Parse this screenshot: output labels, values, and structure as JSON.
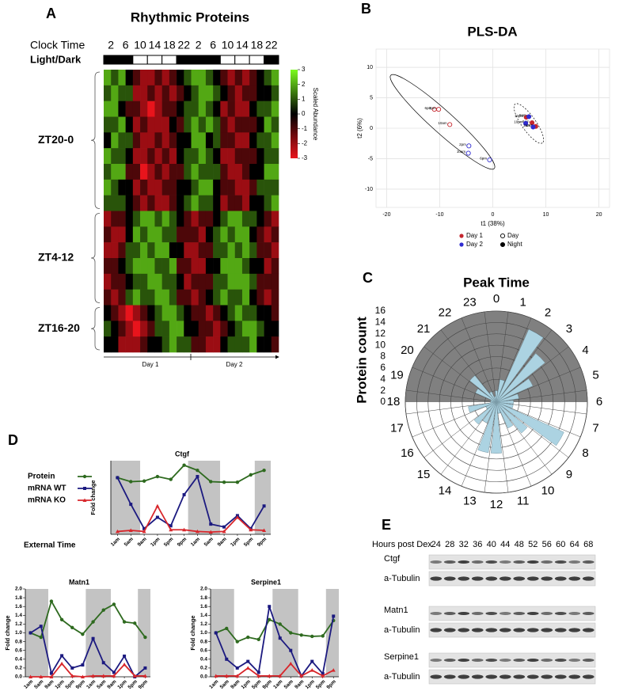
{
  "chart_data": [
    {
      "type": "heatmap",
      "panel": "A",
      "title": "Rhythmic Proteins",
      "clock_label": "Clock Time",
      "columns": [
        2,
        6,
        10,
        14,
        18,
        22,
        2,
        6,
        10,
        14,
        18,
        22
      ],
      "light_dark_label": "Light/Dark",
      "light": [
        false,
        false,
        true,
        true,
        true,
        false,
        false,
        false,
        true,
        true,
        true,
        false
      ],
      "values": [
        [
          2,
          1,
          2,
          0,
          -1,
          -2,
          -2,
          -1,
          -2,
          -1,
          0,
          1,
          2,
          2,
          1,
          0,
          -1,
          -2,
          -1,
          -2,
          -1,
          0,
          1,
          2
        ],
        [
          1,
          2,
          1,
          1,
          -2,
          -2,
          -1,
          -2,
          -1,
          -2,
          -1,
          0,
          1,
          2,
          2,
          1,
          0,
          -1,
          -2,
          -1,
          -1,
          0,
          0,
          1
        ],
        [
          2,
          2,
          0,
          -1,
          -1,
          -2,
          -3,
          -2,
          -1,
          -1,
          0,
          1,
          1,
          2,
          1,
          0,
          -2,
          -1,
          -2,
          -2,
          0,
          1,
          1,
          2
        ],
        [
          1,
          1,
          2,
          0,
          -2,
          -1,
          -2,
          -2,
          -2,
          0,
          -1,
          1,
          2,
          1,
          2,
          1,
          -1,
          -2,
          -1,
          -1,
          -1,
          0,
          2,
          1
        ],
        [
          0,
          2,
          1,
          1,
          -1,
          -2,
          -2,
          -1,
          -2,
          -1,
          0,
          0,
          2,
          2,
          0,
          1,
          -1,
          -1,
          -2,
          -2,
          0,
          1,
          1,
          2
        ],
        [
          2,
          1,
          1,
          0,
          -2,
          -2,
          -1,
          -2,
          -1,
          -2,
          0,
          1,
          1,
          2,
          1,
          0,
          -2,
          -2,
          -1,
          -1,
          -1,
          0,
          1,
          1
        ],
        [
          1,
          2,
          2,
          -1,
          -1,
          -3,
          -2,
          -1,
          -2,
          -1,
          -1,
          1,
          2,
          1,
          1,
          1,
          -1,
          -2,
          -2,
          -1,
          0,
          0,
          2,
          2
        ],
        [
          2,
          1,
          0,
          0,
          -2,
          -1,
          -2,
          -2,
          -1,
          -1,
          0,
          0,
          1,
          2,
          2,
          0,
          -1,
          -1,
          -2,
          -2,
          -1,
          1,
          1,
          1
        ],
        [
          1,
          1,
          1,
          0,
          -1,
          -2,
          -1,
          -2,
          -2,
          -1,
          0,
          1,
          2,
          1,
          1,
          0,
          -2,
          -1,
          -1,
          -2,
          0,
          0,
          1,
          2
        ],
        [
          -2,
          -1,
          -1,
          0,
          1,
          2,
          2,
          1,
          2,
          1,
          0,
          -1,
          -2,
          -1,
          -1,
          0,
          1,
          2,
          2,
          1,
          1,
          0,
          -1,
          -2
        ],
        [
          -1,
          -2,
          -2,
          0,
          2,
          1,
          2,
          2,
          1,
          1,
          -1,
          -1,
          -1,
          -2,
          0,
          1,
          2,
          1,
          2,
          2,
          0,
          -1,
          -2,
          -1
        ],
        [
          -2,
          -2,
          -1,
          1,
          1,
          2,
          1,
          2,
          2,
          0,
          0,
          -2,
          -2,
          -1,
          -1,
          1,
          1,
          2,
          1,
          2,
          1,
          -1,
          -1,
          -2
        ],
        [
          -1,
          -1,
          0,
          1,
          2,
          2,
          2,
          1,
          1,
          2,
          -1,
          -1,
          -2,
          -2,
          0,
          0,
          2,
          2,
          2,
          1,
          0,
          0,
          -2,
          -1
        ],
        [
          -2,
          -1,
          -1,
          0,
          1,
          1,
          2,
          2,
          1,
          1,
          0,
          -2,
          -1,
          -1,
          -1,
          1,
          1,
          2,
          2,
          2,
          1,
          -1,
          -1,
          -1
        ],
        [
          -1,
          -2,
          -1,
          1,
          2,
          1,
          1,
          2,
          2,
          1,
          -1,
          -1,
          -2,
          -1,
          0,
          1,
          2,
          1,
          1,
          2,
          0,
          -1,
          -2,
          -1
        ],
        [
          0,
          -1,
          -2,
          -3,
          -2,
          -1,
          0,
          1,
          2,
          2,
          1,
          0,
          -1,
          -1,
          -2,
          -1,
          0,
          1,
          2,
          1,
          1,
          0,
          0,
          -1
        ],
        [
          1,
          0,
          -1,
          -2,
          -3,
          -2,
          -1,
          1,
          1,
          2,
          2,
          0,
          0,
          -1,
          -1,
          -2,
          -1,
          0,
          1,
          2,
          2,
          1,
          0,
          0
        ],
        [
          0,
          0,
          -2,
          -2,
          -2,
          -1,
          0,
          0,
          1,
          2,
          1,
          1,
          -1,
          -1,
          -2,
          -2,
          0,
          1,
          1,
          1,
          2,
          0,
          0,
          -1
        ]
      ],
      "clim": [
        -3,
        3
      ],
      "colors": {
        "low": "#e8141c",
        "mid": "#000000",
        "high": "#7cfc1e"
      },
      "colorbar_label": "Scaled Abundance",
      "colorbar_ticks": [
        3,
        2,
        1,
        0,
        -1,
        -2,
        -3
      ],
      "row_groups": [
        "ZT20-0",
        "ZT4-12",
        "ZT16-20"
      ],
      "day_labels": [
        "Day 1",
        "Day 2"
      ]
    },
    {
      "type": "scatter",
      "panel": "B",
      "title": "PLS-DA",
      "xlabel": "t1 (38%)",
      "ylabel": "t2 (6%)",
      "xlim": [
        -22,
        22
      ],
      "ylim": [
        -13,
        13
      ],
      "xticks": [
        -20,
        -10,
        0,
        10,
        20
      ],
      "yticks": [
        -10,
        -5,
        0,
        5,
        10
      ],
      "grid": true,
      "series": [
        {
          "name": "Day 1",
          "color": "#c4262e",
          "x": [
            -11,
            -10.2,
            -8.1,
            6.3,
            7.4,
            8.1
          ],
          "y": [
            3.1,
            3.1,
            0.6,
            1.8,
            0.9,
            0.3
          ],
          "point_labels": [
            "6pm",
            "2pm",
            "10am",
            "10pm",
            "6am",
            "2am"
          ],
          "filled": [
            false,
            false,
            false,
            true,
            true,
            true
          ]
        },
        {
          "name": "Day 2",
          "color": "#2f2bd0",
          "x": [
            -4.5,
            -4.6,
            -0.6,
            6.8,
            6.2,
            7.6
          ],
          "y": [
            -2.9,
            -4.1,
            -5.2,
            1.9,
            0.8,
            0.2
          ],
          "point_labels": [
            "2pm",
            "10am",
            "6pm",
            "6am",
            "10pm",
            "2am"
          ],
          "filled": [
            false,
            false,
            false,
            true,
            true,
            true
          ]
        }
      ],
      "marker_legend": [
        "Day",
        "Night"
      ]
    },
    {
      "type": "polar_bar",
      "panel": "C",
      "title": "Peak Time",
      "ylabel": "Protein count",
      "categories": [
        0,
        1,
        2,
        3,
        4,
        5,
        6,
        7,
        8,
        9,
        10,
        11,
        12,
        13,
        14,
        15,
        16,
        17,
        18,
        19,
        20,
        21,
        22,
        23
      ],
      "values": [
        2,
        4,
        14,
        11,
        7,
        4,
        3,
        3,
        13,
        7,
        5,
        2,
        9,
        9,
        4,
        5,
        2,
        5,
        1,
        1,
        4,
        6,
        2,
        1
      ],
      "rlim": [
        0,
        16
      ],
      "rticks": [
        0,
        2,
        4,
        6,
        8,
        10,
        12,
        14,
        16
      ],
      "color": "#acd3e2",
      "shade_color": "#808080"
    },
    {
      "type": "line",
      "panel": "D",
      "title": "Ctgf",
      "ylabel": "Fold change",
      "xlabel": "External Time",
      "categories": [
        "1am",
        "5am",
        "9am",
        "1pm",
        "5pm",
        "9pm",
        "1am",
        "5am",
        "9am",
        "1pm",
        "5pm",
        "9pm"
      ],
      "ylim": [
        0,
        1.3
      ],
      "night_spans": [
        [
          -0.5,
          1.7
        ],
        [
          5.3,
          7.7
        ],
        [
          10.3,
          11.5
        ]
      ],
      "series": [
        {
          "name": "Protein",
          "color": "#2e6a1f",
          "marker": "circle",
          "values": [
            1.0,
            0.93,
            0.94,
            1.02,
            0.97,
            1.22,
            1.13,
            0.93,
            0.92,
            0.92,
            1.05,
            1.13
          ]
        },
        {
          "name": "mRNA WT",
          "color": "#1c1a80",
          "marker": "square",
          "values": [
            1.0,
            0.53,
            0.1,
            0.3,
            0.15,
            0.7,
            1.02,
            0.18,
            0.13,
            0.33,
            0.1,
            0.5
          ]
        },
        {
          "name": "mRNA KO",
          "color": "#d8262b",
          "marker": "triangle",
          "values": [
            0.05,
            0.07,
            0.05,
            0.5,
            0.08,
            0.08,
            0.05,
            0.04,
            0.05,
            0.3,
            0.08,
            0.07
          ]
        }
      ]
    },
    {
      "type": "line",
      "title": "Matn1",
      "ylabel": "Fold change",
      "categories": [
        "1am",
        "5am",
        "9am",
        "1pm",
        "5pm",
        "9pm",
        "1am",
        "5am",
        "9am",
        "1pm",
        "5pm",
        "9pm"
      ],
      "ylim": [
        0,
        2.0
      ],
      "yticks": [
        {
          "value": 0,
          "label": "0.0"
        },
        0.2,
        0.4,
        0.6,
        0.8,
        {
          "value": 1,
          "label": "1.0"
        },
        1.2,
        1.4,
        1.6,
        1.8,
        {
          "value": 2,
          "label": "2.0"
        }
      ],
      "night_spans": [
        [
          -0.5,
          1.7
        ],
        [
          5.3,
          7.7
        ],
        [
          10.3,
          11.5
        ]
      ],
      "series": [
        {
          "color": "#2e6a1f",
          "marker": "circle",
          "values": [
            1.0,
            0.9,
            1.72,
            1.3,
            1.12,
            0.97,
            1.25,
            1.52,
            1.65,
            1.25,
            1.22,
            0.9
          ]
        },
        {
          "color": "#1c1a80",
          "marker": "square",
          "values": [
            1.0,
            1.15,
            0.08,
            0.48,
            0.2,
            0.27,
            0.87,
            0.32,
            0.1,
            0.47,
            0.0,
            0.2
          ]
        },
        {
          "color": "#d8262b",
          "marker": "triangle",
          "values": [
            0.0,
            0.0,
            0.0,
            0.3,
            0.02,
            0.0,
            0.02,
            0.02,
            0.02,
            0.28,
            0.02,
            0.02
          ]
        }
      ]
    },
    {
      "type": "line",
      "title": "Serpine1",
      "ylabel": "Fold change",
      "categories": [
        "1am",
        "5am",
        "9am",
        "1pm",
        "5pm",
        "9pm",
        "1am",
        "5am",
        "9am",
        "1pm",
        "5pm",
        "9pm"
      ],
      "ylim": [
        0,
        2.0
      ],
      "yticks": [
        {
          "value": 0,
          "label": "0.0"
        },
        0.2,
        0.4,
        0.6,
        0.8,
        {
          "value": 1,
          "label": "1.0"
        },
        1.2,
        1.4,
        1.6,
        1.8,
        {
          "value": 2,
          "label": "2.0"
        }
      ],
      "night_spans": [
        [
          -0.5,
          1.7
        ],
        [
          5.3,
          7.7
        ],
        [
          10.3,
          11.5
        ]
      ],
      "series": [
        {
          "color": "#2e6a1f",
          "marker": "circle",
          "values": [
            1.0,
            1.1,
            0.8,
            0.9,
            0.85,
            1.3,
            1.2,
            1.0,
            0.95,
            0.92,
            0.93,
            1.28
          ]
        },
        {
          "color": "#1c1a80",
          "marker": "square",
          "values": [
            1.0,
            0.4,
            0.2,
            0.35,
            0.1,
            1.6,
            0.88,
            0.6,
            0.02,
            0.35,
            0.07,
            1.38
          ]
        },
        {
          "color": "#d8262b",
          "marker": "triangle",
          "values": [
            0.02,
            0.02,
            0.02,
            0.2,
            0.02,
            0.02,
            0.02,
            0.3,
            0.02,
            0.15,
            0.02,
            0.15
          ]
        }
      ]
    }
  ],
  "blot": {
    "panel": "E",
    "label": "Hours post Dex",
    "hours": [
      24,
      28,
      32,
      36,
      40,
      44,
      48,
      52,
      56,
      60,
      64,
      68
    ],
    "rows": [
      "Ctgf",
      "a-Tubulin",
      "Matn1",
      "a-Tubulin",
      "Serpine1",
      "a-Tubulin"
    ]
  }
}
